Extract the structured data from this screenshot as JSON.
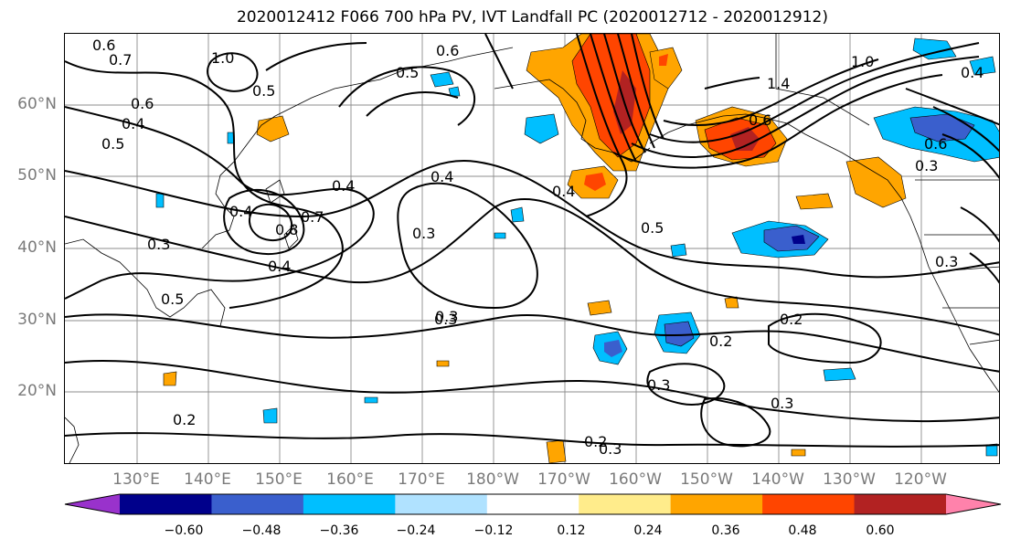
{
  "title": "2020012412 F066 700 hPa PV, IVT Landfall PC (2020012712 - 2020012912)",
  "lat_labels": [
    "60°N",
    "50°N",
    "40°N",
    "30°N",
    "20°N"
  ],
  "lon_labels": [
    "130°E",
    "140°E",
    "150°E",
    "160°E",
    "170°E",
    "180°W",
    "170°W",
    "160°W",
    "150°W",
    "140°W",
    "130°W",
    "120°W"
  ],
  "colorbar": {
    "ticks": [
      "−0.60",
      "−0.48",
      "−0.36",
      "−0.24",
      "−0.12",
      "0.12",
      "0.24",
      "0.36",
      "0.48",
      "0.60"
    ],
    "colors": [
      "#9932cc",
      "#00008b",
      "#3a5fcd",
      "#00bfff",
      "#b0e2ff",
      "#ffffff",
      "#ffec8b",
      "#ffa500",
      "#ff4500",
      "#b22222",
      "#ff82ab"
    ]
  },
  "contour_labels": [
    "0.6",
    "0.7",
    "0.6",
    "1.0",
    "0.6",
    "0.5",
    "0.4",
    "0.5",
    "0.5",
    "0.3",
    "0.4",
    "0.4",
    "0.3",
    "0.3",
    "0.4",
    "0.8",
    "0.7",
    "0.4",
    "0.5",
    "0.4",
    "0.5",
    "0.3",
    "0.2",
    "0.3",
    "0.2",
    "0.3",
    "0.2",
    "0.3",
    "0.2",
    "0.6",
    "1.4",
    "1.0",
    "0.3",
    "0.3",
    "0.6",
    "0.4"
  ]
}
